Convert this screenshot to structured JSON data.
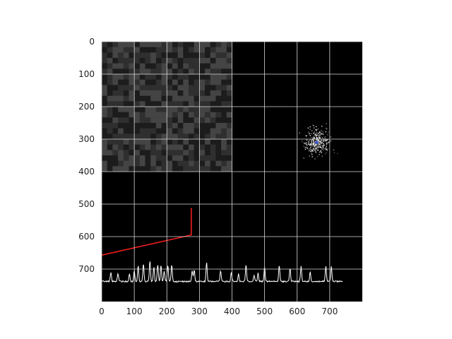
{
  "chart_data": {
    "type": "image",
    "title": "",
    "xlabel": "",
    "ylabel": "",
    "xlim": [
      0,
      800
    ],
    "ylim": [
      800,
      0
    ],
    "grid": true,
    "x_ticks": [
      0,
      100,
      200,
      300,
      400,
      500,
      600,
      700
    ],
    "y_ticks": [
      0,
      100,
      200,
      300,
      400,
      500,
      600,
      700
    ],
    "background_color": "#000000",
    "grid_color": "#d9d9d9",
    "layers": [
      {
        "name": "",
        "kind": "texture",
        "extent": {
          "x": [
            0,
            400
          ],
          "y": [
            0,
            400
          ]
        },
        "colors": [
          "#1c1c1c",
          "#2f2f2f",
          "#444444"
        ]
      },
      {
        "name": "",
        "kind": "scatter-cloud",
        "center": [
          660,
          310
        ],
        "spread": [
          40,
          45
        ],
        "color": "#ffffff",
        "marker": {
          "x": 660,
          "y": 310,
          "color": "#3a5bd9"
        }
      },
      {
        "name": "",
        "kind": "line",
        "color": "#ff2020",
        "points": [
          [
            0,
            657
          ],
          [
            275,
            595
          ],
          [
            275,
            512
          ]
        ]
      },
      {
        "name": "",
        "kind": "spectrum",
        "color": "#ffffff",
        "x_range": [
          0,
          740
        ],
        "baseline": 738,
        "peaks": [
          [
            28,
            710
          ],
          [
            50,
            712
          ],
          [
            85,
            715
          ],
          [
            100,
            705
          ],
          [
            112,
            690
          ],
          [
            128,
            683
          ],
          [
            148,
            675
          ],
          [
            160,
            693
          ],
          [
            172,
            685
          ],
          [
            182,
            690
          ],
          [
            192,
            705
          ],
          [
            203,
            688
          ],
          [
            215,
            685
          ],
          [
            278,
            705
          ],
          [
            284,
            702
          ],
          [
            322,
            680
          ],
          [
            365,
            705
          ],
          [
            398,
            710
          ],
          [
            420,
            715
          ],
          [
            443,
            686
          ],
          [
            468,
            718
          ],
          [
            480,
            712
          ],
          [
            500,
            692
          ],
          [
            545,
            688
          ],
          [
            578,
            697
          ],
          [
            612,
            692
          ],
          [
            640,
            710
          ],
          [
            688,
            690
          ],
          [
            705,
            693
          ]
        ]
      }
    ]
  }
}
